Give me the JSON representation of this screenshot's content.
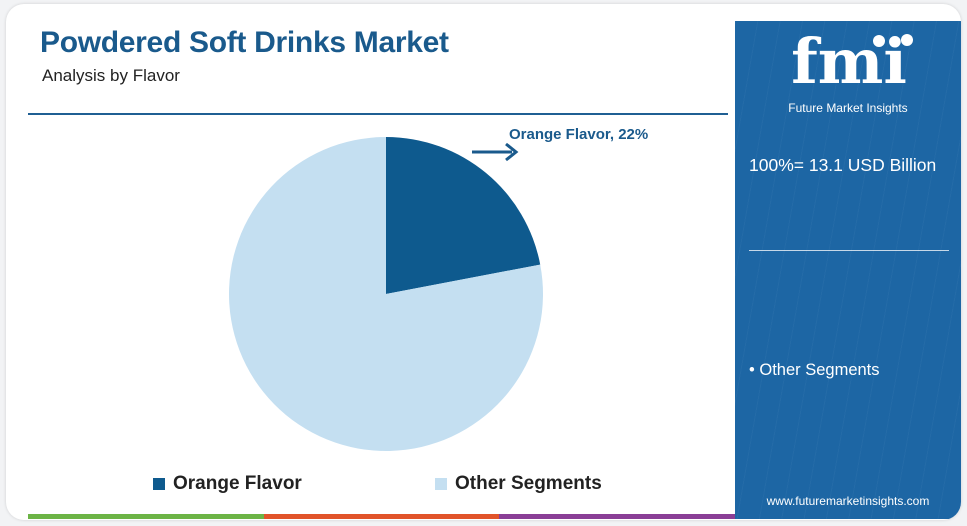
{
  "header": {
    "title": "Powdered Soft Drinks Market",
    "subtitle": "Analysis by Flavor"
  },
  "chart_data": {
    "type": "pie",
    "title": "Powdered Soft Drinks Market",
    "subtitle": "Analysis by Flavor",
    "categories": [
      "Orange Flavor",
      "Other Segments"
    ],
    "values": [
      22,
      78
    ],
    "unit": "%",
    "annotations": [
      "Orange Flavor, 22%"
    ],
    "legend": {
      "placement": "bottom",
      "entries": [
        "Orange Flavor",
        "Other Segments"
      ]
    },
    "colors": [
      "#0e5a8e",
      "#c4dff1"
    ]
  },
  "sidebar": {
    "logo_text": "fmi",
    "logo_caption": "Future Market Insights",
    "total_label": "100%= 13.1 USD Billion",
    "segment_note": "• Other Segments",
    "website": "www.futuremarketinsights.com"
  },
  "theme": {
    "accent": "#1d66a4",
    "bar_colors": [
      "#6cb446",
      "#e1542a",
      "#8a3e96"
    ]
  }
}
